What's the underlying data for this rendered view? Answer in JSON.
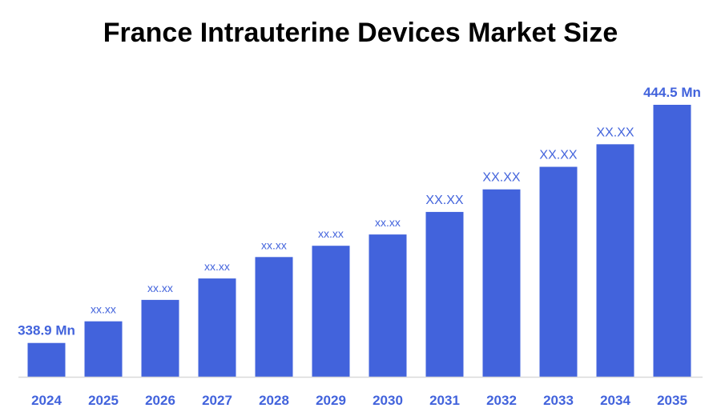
{
  "chart_data": {
    "type": "bar",
    "title": "France Intrauterine Devices Market Size",
    "categories": [
      "2024",
      "2025",
      "2026",
      "2027",
      "2028",
      "2029",
      "2030",
      "2031",
      "2032",
      "2033",
      "2034",
      "2035"
    ],
    "values": [
      338.9,
      348.5,
      358.0,
      367.5,
      377.0,
      382.0,
      387.0,
      397.0,
      407.0,
      417.0,
      427.0,
      444.5
    ],
    "data_labels": [
      "338.9 Mn",
      "xx.xx",
      "xx.xx",
      "xx.xx",
      "xx.xx",
      "xx.xx",
      "xx.xx",
      "XX.XX",
      "XX.XX",
      "XX.XX",
      "XX.XX",
      "444.5 Mn"
    ],
    "unit": "Mn",
    "ylim": [
      323.9,
      444.5
    ],
    "grid": false,
    "legend": "none",
    "bar_color": "#4263dc",
    "label_color": "#4263dc",
    "axis_line_color": "#d9d9d9"
  }
}
